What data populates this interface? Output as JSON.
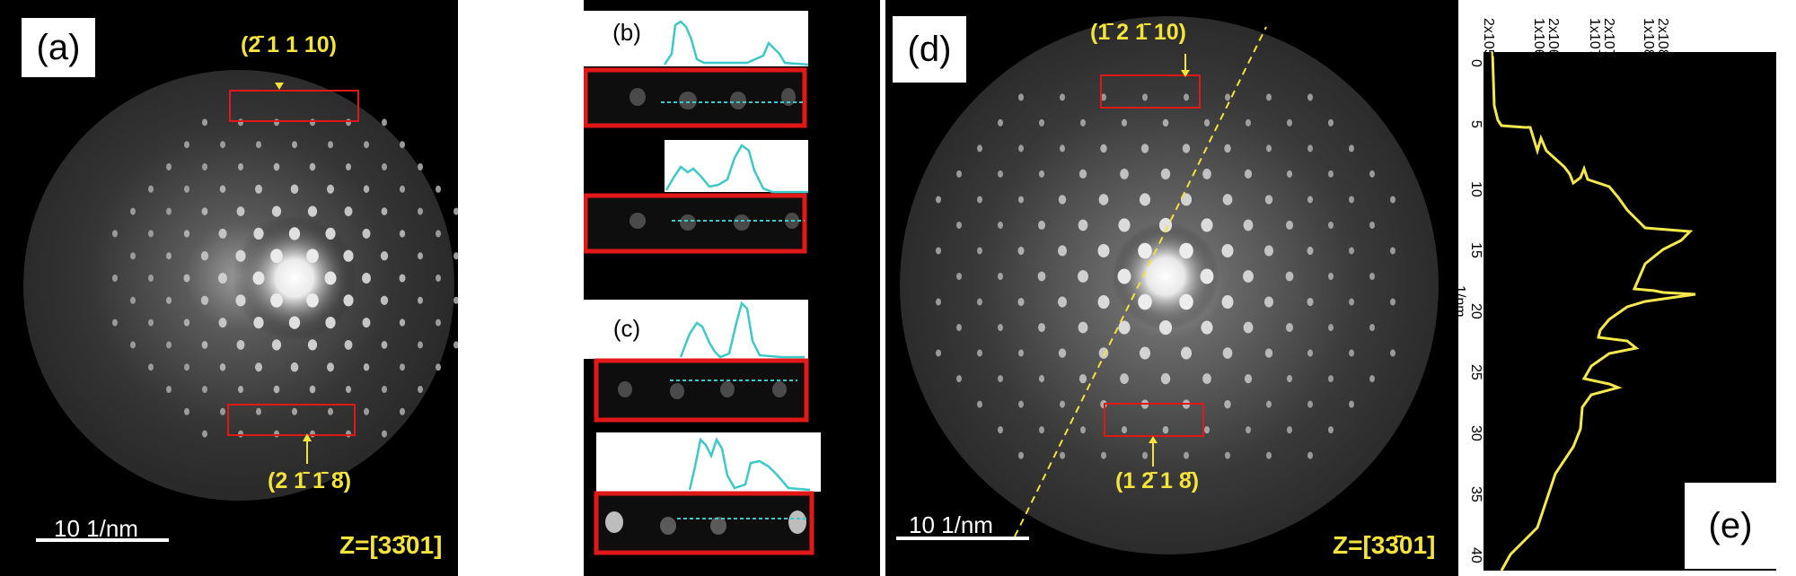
{
  "panel_a": {
    "label": "(a)",
    "top_index": "(2̄ 1 1 10)",
    "bottom_index": "(2 1̄ 1̄ 8̄)",
    "scale_text": "10  1/nm",
    "zone_axis": "Z=[33̄01]"
  },
  "panel_b": {
    "label": "(b)"
  },
  "panel_c": {
    "label": "(c)"
  },
  "panel_d": {
    "label": "(d)",
    "top_index": "(1̄ 2 1̄ 10)",
    "bottom_index": "(1 2̄ 1 8̄)",
    "scale_text": "10  1/nm",
    "zone_axis": "Z=[33̄01]"
  },
  "panel_e": {
    "label": "(e)",
    "x_ticks": [
      "2x105",
      "2x106",
      "1x106",
      "2x107",
      "1x107",
      "2x108",
      "1x108"
    ],
    "y_ticks": [
      "0",
      "5",
      "10",
      "15",
      "20",
      "25",
      "30",
      "35",
      "40"
    ],
    "y_axis_label": "1/nm",
    "line_color": "#f5e84a"
  },
  "colors": {
    "annotation_yellow": "#f3e33a",
    "box_red": "#e01818",
    "profile_cyan": "#3dc9c9"
  }
}
